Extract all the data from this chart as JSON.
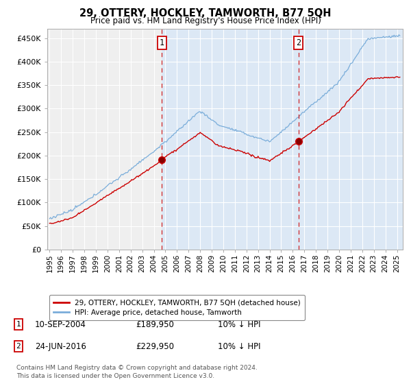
{
  "title": "29, OTTERY, HOCKLEY, TAMWORTH, B77 5QH",
  "subtitle": "Price paid vs. HM Land Registry's House Price Index (HPI)",
  "background_color": "#ffffff",
  "plot_bg_color": "#dce8f5",
  "plot_bg_left_color": "#e8e8e8",
  "ylim": [
    0,
    470000
  ],
  "yticks": [
    0,
    50000,
    100000,
    150000,
    200000,
    250000,
    300000,
    350000,
    400000,
    450000
  ],
  "ytick_labels": [
    "£0",
    "£50K",
    "£100K",
    "£150K",
    "£200K",
    "£250K",
    "£300K",
    "£350K",
    "£400K",
    "£450K"
  ],
  "xlim_start": 1994.8,
  "xlim_end": 2025.5,
  "xticks": [
    1995,
    1996,
    1997,
    1998,
    1999,
    2000,
    2001,
    2002,
    2003,
    2004,
    2005,
    2006,
    2007,
    2008,
    2009,
    2010,
    2011,
    2012,
    2013,
    2014,
    2015,
    2016,
    2017,
    2018,
    2019,
    2020,
    2021,
    2022,
    2023,
    2024,
    2025
  ],
  "sale1_x": 2004.7,
  "sale1_y": 189950,
  "sale2_x": 2016.48,
  "sale2_y": 229950,
  "red_line_color": "#cc0000",
  "blue_line_color": "#7aadda",
  "shade_color": "#dce8f5",
  "annotation_box_color": "#cc0000",
  "dashed_line_color": "#cc0000",
  "legend_label_red": "29, OTTERY, HOCKLEY, TAMWORTH, B77 5QH (detached house)",
  "legend_label_blue": "HPI: Average price, detached house, Tamworth",
  "note1_label": "1",
  "note1_date": "10-SEP-2004",
  "note1_price": "£189,950",
  "note1_hpi": "10% ↓ HPI",
  "note2_label": "2",
  "note2_date": "24-JUN-2016",
  "note2_price": "£229,950",
  "note2_hpi": "10% ↓ HPI",
  "footer": "Contains HM Land Registry data © Crown copyright and database right 2024.\nThis data is licensed under the Open Government Licence v3.0."
}
